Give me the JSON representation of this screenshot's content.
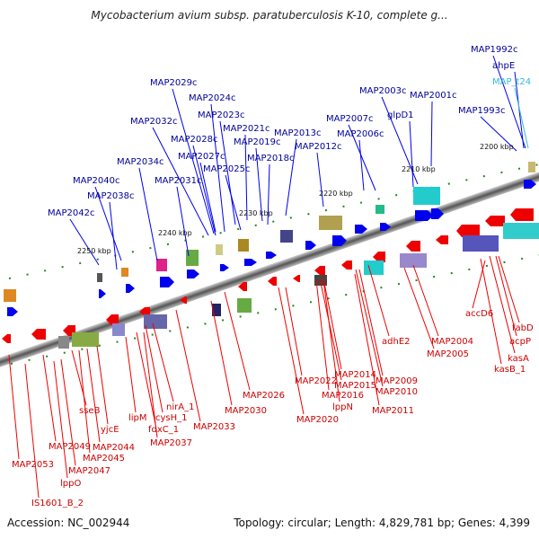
{
  "title": "Mycobacterium avium subsp. paratuberculosis K-10, complete g...",
  "footer": {
    "accession": "Accession: NC_002944",
    "summary": "Topology: circular; Length: 4,829,781 bp; Genes: 4,399"
  },
  "kbp_ticks": [
    "2200 kbp",
    "2210 kbp",
    "2220 kbp",
    "2230 kbp",
    "2240 kbp",
    "2250 kbp"
  ],
  "top_genes": [
    "MAP1992c",
    "ahpE",
    "MAP_t24",
    "MAP2003c",
    "MAP2001c",
    "MAP1993c",
    "MAP2029c",
    "MAP2024c",
    "MAP2032c",
    "MAP2023c",
    "MAP2021c",
    "MAP2028c",
    "MAP2019c",
    "MAP2013c",
    "MAP2007c",
    "glpD1",
    "MAP2027c",
    "MAP2012c",
    "MAP2006c",
    "MAP2025c",
    "MAP2018c",
    "MAP2034c",
    "MAP2040c",
    "MAP2031c",
    "MAP2038c",
    "MAP2042c"
  ],
  "bottom_genes": [
    "accD6",
    "fabD",
    "acpP",
    "kasA",
    "kasB_1",
    "MAP2004",
    "MAP2005",
    "adhE2",
    "MAP2009",
    "MAP2010",
    "MAP2014",
    "MAP2015",
    "MAP2016",
    "lppN",
    "MAP2011",
    "MAP2022",
    "MAP2020",
    "MAP2026",
    "nirA_1",
    "cysH_1",
    "MAP2030",
    "MAP2033",
    "lipM",
    "fdxC_1",
    "MAP2037",
    "yjcE",
    "sseB",
    "MAP2044",
    "MAP2045",
    "MAP2049",
    "MAP2053",
    "MAP2047",
    "lppO",
    "IS1601_B_2"
  ],
  "colors": {
    "forward": "#0000ee",
    "reverse": "#ee0000",
    "top_label": "#000099",
    "bottom_label": "#cc0000",
    "rna_label": "#33bbdd",
    "tick": "#228822"
  }
}
